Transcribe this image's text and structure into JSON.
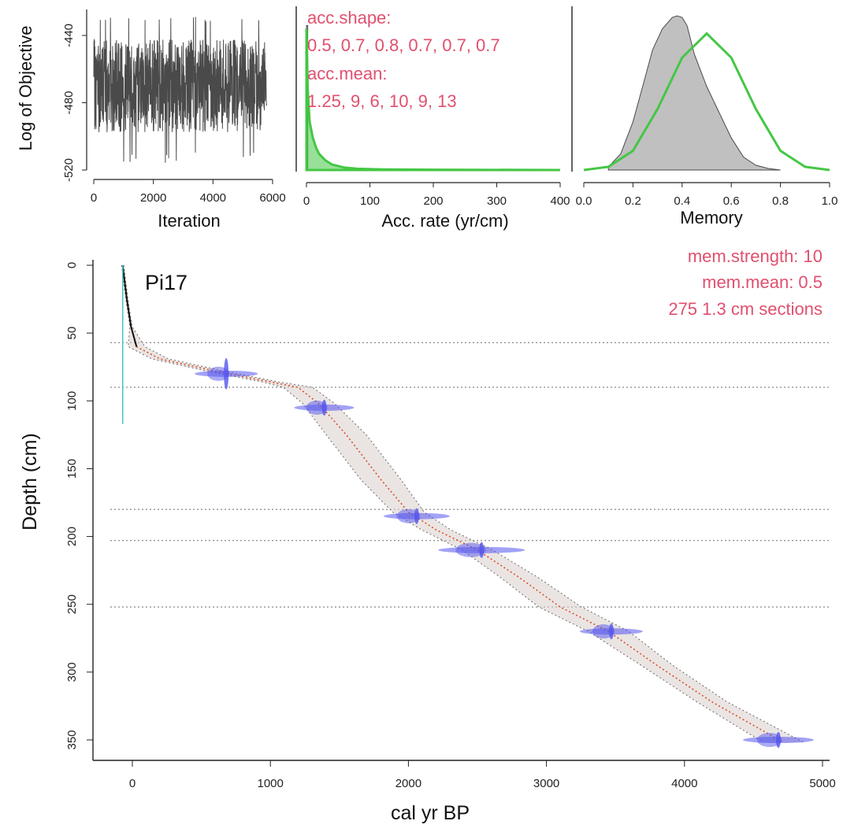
{
  "colors": {
    "prior": "#44c744",
    "posterior_fill": "#c0c0c0",
    "trace": "#4a4a4a",
    "date": "#5555ee",
    "settings_text": "#e0506e",
    "hiatus": "#6a6a6a"
  },
  "chart_data": [
    {
      "type": "line",
      "x_ticks": [
        "0",
        "2000",
        "4000",
        "6000"
      ],
      "y_ticks": [
        "-440",
        "-480",
        "-520"
      ],
      "xlabel": "Iteration",
      "ylabel": "Log of Objective",
      "xlim": [
        0,
        6000
      ],
      "ylim": [
        -520,
        -430
      ],
      "series": [
        {
          "values_summary": {
            "iterations": 5800,
            "mean": -470,
            "min": -517,
            "max": -432
          }
        }
      ]
    },
    {
      "type": "area",
      "x_ticks": [
        "0",
        "100",
        "200",
        "300",
        "400"
      ],
      "xlabel": "Acc. rate (yr/cm)",
      "xlim": [
        0,
        400
      ],
      "annotations": [
        "acc.shape:",
        "0.5, 0.7, 0.8, 0.7, 0.7, 0.7",
        "acc.mean:",
        " 1.25, 9, 6, 10, 9, 13"
      ],
      "series": [
        {
          "x": [
            0,
            2,
            5,
            10,
            15,
            20,
            30,
            40,
            60,
            80,
            120,
            200,
            400
          ],
          "y": [
            0.88,
            0.5,
            0.3,
            0.2,
            0.14,
            0.1,
            0.06,
            0.035,
            0.015,
            0.008,
            0.004,
            0.002,
            0.0
          ]
        }
      ]
    },
    {
      "type": "area",
      "x_ticks": [
        "0.0",
        "0.2",
        "0.4",
        "0.6",
        "0.8",
        "1.0"
      ],
      "xlabel": "Memory",
      "xlim": [
        0,
        1
      ],
      "series": [
        {
          "x": [
            0.1,
            0.15,
            0.2,
            0.25,
            0.28,
            0.32,
            0.36,
            0.38,
            0.4,
            0.42,
            0.45,
            0.5,
            0.55,
            0.6,
            0.65,
            0.7,
            0.75,
            0.8
          ],
          "y": [
            0.02,
            0.1,
            0.3,
            0.58,
            0.75,
            0.88,
            0.95,
            0.96,
            0.95,
            0.9,
            0.72,
            0.52,
            0.36,
            0.2,
            0.08,
            0.03,
            0.01,
            0.0
          ]
        },
        {
          "x": [
            0.0,
            0.1,
            0.2,
            0.3,
            0.4,
            0.5,
            0.6,
            0.7,
            0.8,
            0.9,
            1.0
          ],
          "y": [
            0.0,
            0.02,
            0.12,
            0.38,
            0.7,
            0.85,
            0.7,
            0.38,
            0.12,
            0.02,
            0.0
          ]
        }
      ]
    },
    {
      "type": "line",
      "title": "Pi17",
      "xlabel": "cal yr BP",
      "ylabel": "Depth (cm)",
      "xlim": [
        -330,
        5150
      ],
      "ylim": [
        355,
        -5
      ],
      "x_ticks": [
        "0",
        "1000",
        "2000",
        "3000",
        "4000",
        "5000"
      ],
      "y_ticks": [
        "0",
        "50",
        "100",
        "150",
        "200",
        "250",
        "300",
        "350"
      ],
      "annotations": [
        "mem.strength: 10",
        "mem.mean: 0.5",
        "275 1.3 cm sections"
      ],
      "hiatus_depths": [
        57,
        90,
        180,
        203,
        252
      ],
      "series": [
        {
          "x": [
            -70,
            -58,
            -40,
            -10,
            30,
            200,
            600,
            1000,
            1200,
            1350,
            1550,
            1800,
            2000,
            2200,
            2500,
            2800,
            3100,
            3450,
            3800,
            4200,
            4720
          ],
          "y": [
            0,
            10,
            25,
            45,
            60,
            69,
            78,
            86,
            90,
            102,
            125,
            158,
            182,
            195,
            210,
            230,
            252,
            270,
            295,
            322,
            352
          ]
        }
      ],
      "dates": [
        {
          "x": 680,
          "y": 80
        },
        {
          "x": 1390,
          "y": 105
        },
        {
          "x": 2060,
          "y": 185
        },
        {
          "x": 2530,
          "y": 210
        },
        {
          "x": 3470,
          "y": 270
        },
        {
          "x": 4680,
          "y": 350
        }
      ]
    }
  ]
}
